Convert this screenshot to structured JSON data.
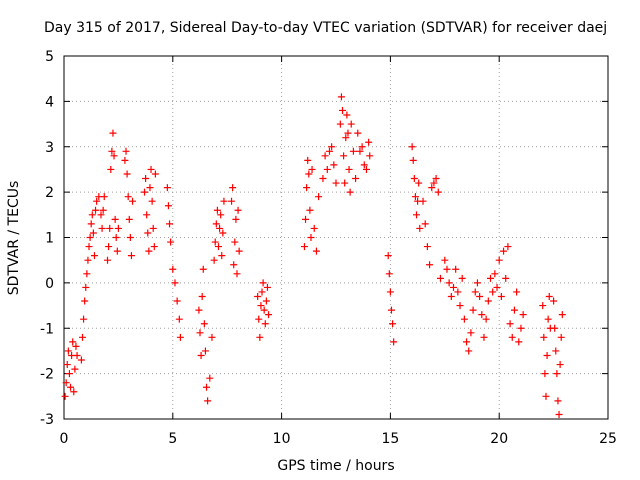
{
  "chart_data": {
    "type": "scatter",
    "title": "Day 315 of 2017, Sidereal Day-to-day VTEC variation (SDTVAR) for receiver daej",
    "xlabel": "GPS time / hours",
    "ylabel": "SDTVAR / TECUs",
    "xlim": [
      0,
      25
    ],
    "ylim": [
      -3,
      5
    ],
    "xticks": [
      0,
      5,
      10,
      15,
      20,
      25
    ],
    "yticks": [
      -3,
      -2,
      -1,
      0,
      1,
      2,
      3,
      4,
      5
    ],
    "grid": true,
    "marker": "+",
    "color": "#ff0000",
    "series": [
      {
        "name": "SDTVAR",
        "x": [
          0.05,
          0.1,
          0.15,
          0.2,
          0.25,
          0.3,
          0.35,
          0.4,
          0.45,
          0.5,
          0.55,
          0.6,
          0.8,
          0.85,
          0.9,
          0.95,
          1.0,
          1.05,
          1.1,
          1.15,
          1.2,
          1.25,
          1.3,
          1.35,
          1.4,
          1.45,
          1.5,
          1.6,
          1.7,
          1.75,
          1.8,
          1.85,
          2.0,
          2.05,
          2.1,
          2.15,
          2.2,
          2.25,
          2.3,
          2.35,
          2.4,
          2.45,
          2.5,
          2.8,
          2.85,
          2.9,
          2.95,
          3.0,
          3.05,
          3.1,
          3.15,
          3.7,
          3.75,
          3.8,
          3.85,
          3.9,
          3.95,
          4.0,
          4.05,
          4.1,
          4.15,
          4.2,
          4.75,
          4.8,
          4.85,
          4.9,
          5.0,
          5.1,
          5.2,
          5.3,
          5.35,
          6.2,
          6.25,
          6.3,
          6.35,
          6.4,
          6.45,
          6.5,
          6.55,
          6.6,
          6.7,
          6.8,
          6.9,
          6.95,
          7.0,
          7.05,
          7.1,
          7.15,
          7.2,
          7.25,
          7.3,
          7.35,
          7.7,
          7.75,
          7.8,
          7.85,
          7.9,
          7.95,
          8.0,
          8.05,
          8.9,
          8.95,
          9.0,
          9.05,
          9.1,
          9.15,
          9.2,
          9.25,
          9.3,
          9.35,
          9.4,
          11.05,
          11.1,
          11.15,
          11.2,
          11.25,
          11.3,
          11.35,
          11.4,
          11.5,
          11.6,
          11.7,
          11.9,
          12.0,
          12.1,
          12.2,
          12.3,
          12.4,
          12.5,
          12.7,
          12.75,
          12.8,
          12.85,
          12.9,
          12.95,
          13.0,
          13.05,
          13.1,
          13.15,
          13.2,
          13.3,
          13.4,
          13.5,
          13.6,
          13.7,
          13.8,
          13.9,
          14.0,
          14.05,
          14.9,
          14.95,
          15.0,
          15.05,
          15.1,
          15.15,
          16.0,
          16.05,
          16.1,
          16.15,
          16.2,
          16.25,
          16.3,
          16.35,
          16.5,
          16.6,
          16.7,
          16.8,
          16.9,
          17.0,
          17.1,
          17.2,
          17.3,
          17.5,
          17.6,
          17.7,
          17.8,
          17.9,
          18.0,
          18.1,
          18.2,
          18.3,
          18.4,
          18.5,
          18.6,
          18.7,
          18.8,
          18.9,
          19.0,
          19.1,
          19.2,
          19.3,
          19.4,
          19.5,
          19.6,
          19.7,
          19.8,
          19.9,
          20.0,
          20.1,
          20.2,
          20.3,
          20.4,
          20.5,
          20.6,
          20.7,
          20.8,
          20.9,
          21.0,
          21.1,
          22.0,
          22.05,
          22.1,
          22.15,
          22.2,
          22.25,
          22.3,
          22.35,
          22.5,
          22.55,
          22.6,
          22.65,
          22.7,
          22.75,
          22.8,
          22.85,
          22.9
        ],
        "y": [
          -2.5,
          -2.2,
          -1.8,
          -1.5,
          -2.0,
          -2.3,
          -1.6,
          -1.3,
          -2.4,
          -1.9,
          -1.4,
          -1.6,
          -1.7,
          -1.2,
          -0.8,
          -0.4,
          -0.1,
          0.2,
          0.5,
          0.8,
          1.0,
          1.3,
          1.5,
          1.1,
          0.6,
          1.6,
          1.8,
          1.9,
          1.5,
          1.2,
          1.6,
          1.9,
          0.5,
          0.8,
          1.2,
          2.5,
          2.9,
          3.3,
          2.8,
          1.4,
          1.0,
          0.7,
          1.2,
          2.7,
          2.9,
          2.4,
          1.9,
          1.4,
          1.0,
          0.6,
          1.8,
          2.0,
          2.3,
          1.5,
          1.1,
          0.7,
          2.1,
          2.5,
          1.8,
          1.2,
          0.8,
          2.4,
          2.1,
          1.7,
          1.3,
          0.9,
          0.3,
          0.0,
          -0.4,
          -0.8,
          -1.2,
          -0.6,
          -1.1,
          -1.6,
          -0.3,
          0.3,
          -0.9,
          -1.5,
          -2.3,
          -2.6,
          -2.1,
          -1.2,
          0.5,
          0.9,
          1.3,
          1.6,
          0.8,
          1.2,
          1.5,
          0.6,
          1.1,
          1.8,
          1.8,
          2.1,
          0.4,
          0.9,
          1.4,
          0.2,
          1.6,
          0.7,
          -0.3,
          -0.8,
          -1.2,
          -0.5,
          -0.2,
          0.0,
          -0.6,
          -0.9,
          -0.4,
          -0.1,
          -0.7,
          0.8,
          1.4,
          2.1,
          2.7,
          2.4,
          1.6,
          1.0,
          2.5,
          1.2,
          0.7,
          1.9,
          2.3,
          2.8,
          2.5,
          2.9,
          3.0,
          2.6,
          2.2,
          3.5,
          4.1,
          3.8,
          2.8,
          2.2,
          3.2,
          3.7,
          3.3,
          2.5,
          2.0,
          3.5,
          2.9,
          2.3,
          3.3,
          2.9,
          3.0,
          2.6,
          2.5,
          3.1,
          2.8,
          0.6,
          0.2,
          -0.2,
          -0.6,
          -0.9,
          -1.3,
          3.0,
          2.7,
          2.3,
          1.9,
          1.5,
          1.8,
          2.2,
          1.2,
          1.8,
          1.3,
          0.8,
          0.4,
          2.1,
          2.2,
          2.3,
          2.0,
          0.1,
          0.5,
          0.3,
          0.0,
          -0.3,
          -0.1,
          0.3,
          -0.2,
          -0.5,
          0.1,
          -0.8,
          -1.3,
          -1.5,
          -1.1,
          -0.6,
          -0.2,
          0.0,
          -0.3,
          -0.7,
          -1.2,
          -0.8,
          -0.4,
          0.1,
          -0.2,
          0.2,
          -0.1,
          0.5,
          -0.3,
          0.7,
          0.1,
          0.8,
          -0.9,
          -1.2,
          -0.6,
          -0.2,
          -1.3,
          -1.0,
          -0.7,
          -0.5,
          -1.2,
          -2.0,
          -2.5,
          -1.6,
          -0.8,
          -0.3,
          -1.0,
          -0.4,
          -1.0,
          -1.5,
          -2.0,
          -2.6,
          -2.9,
          -1.8,
          -1.2,
          -0.7
        ]
      }
    ]
  }
}
